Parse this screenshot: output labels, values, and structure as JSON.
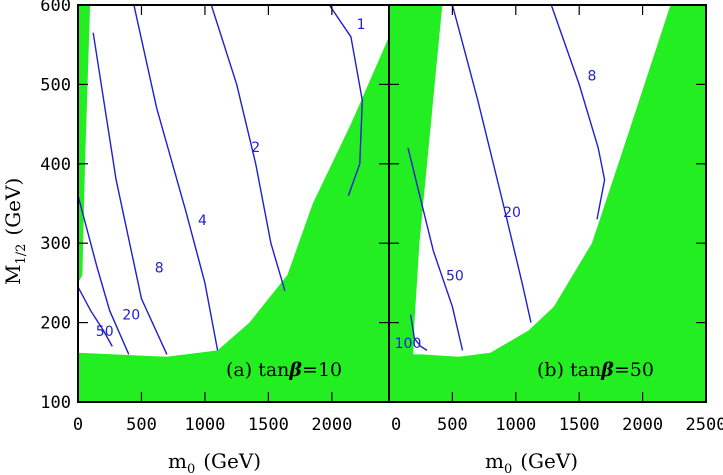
{
  "colors": {
    "excluded": "#22ee22",
    "contour": "#1f1fcf",
    "frame": "#000000"
  },
  "chart_data": [
    {
      "type": "contour",
      "panel": "a",
      "caption_prefix": "(a) tan",
      "caption_symbol": "β",
      "caption_value": "=10",
      "xlabel_main": "m",
      "xlabel_sub": "0",
      "xlabel_unit": "(GeV)",
      "ylabel_main": "M",
      "ylabel_sub": "1/2",
      "ylabel_unit": "(GeV)",
      "xlim": [
        0,
        2450
      ],
      "ylim": [
        100,
        600
      ],
      "xticks": [
        0,
        500,
        1000,
        1500,
        2000
      ],
      "xtick_labels": [
        "0",
        "500",
        "1000",
        "1500",
        "2000"
      ],
      "yticks": [
        100,
        200,
        300,
        400,
        500,
        600
      ],
      "ytick_labels": [
        "100",
        "200",
        "300",
        "400",
        "500",
        "600"
      ],
      "excluded_regions": [
        {
          "name": "left-strip",
          "points": [
            [
              0,
              360
            ],
            [
              0,
              600
            ],
            [
              95,
              600
            ],
            [
              55,
              400
            ],
            [
              35,
              260
            ],
            [
              0,
              250
            ]
          ]
        },
        {
          "name": "bottom-band",
          "points": [
            [
              0,
              100
            ],
            [
              2450,
              100
            ],
            [
              2450,
              560
            ],
            [
              2150,
              450
            ],
            [
              1850,
              350
            ],
            [
              1650,
              260
            ],
            [
              1350,
              200
            ],
            [
              1100,
              165
            ],
            [
              700,
              157
            ],
            [
              0,
              162
            ]
          ]
        }
      ],
      "contours": [
        {
          "label": "50",
          "points": [
            [
              0,
              245
            ],
            [
              100,
              215
            ],
            [
              200,
              190
            ],
            [
              270,
              170
            ]
          ],
          "label_at": [
            210,
            188
          ]
        },
        {
          "label": "20",
          "points": [
            [
              0,
              360
            ],
            [
              150,
              270
            ],
            [
              250,
              215
            ],
            [
              400,
              160
            ]
          ],
          "label_at": [
            420,
            209
          ]
        },
        {
          "label": "8",
          "points": [
            [
              120,
              565
            ],
            [
              300,
              380
            ],
            [
              500,
              230
            ],
            [
              700,
              160
            ]
          ],
          "label_at": [
            640,
            268
          ]
        },
        {
          "label": "4",
          "points": [
            [
              440,
              600
            ],
            [
              620,
              470
            ],
            [
              850,
              340
            ],
            [
              1000,
              250
            ],
            [
              1100,
              165
            ]
          ],
          "label_at": [
            980,
            328
          ]
        },
        {
          "label": "2",
          "points": [
            [
              1050,
              600
            ],
            [
              1250,
              500
            ],
            [
              1400,
              400
            ],
            [
              1520,
              300
            ],
            [
              1630,
              240
            ]
          ],
          "label_at": [
            1400,
            420
          ]
        },
        {
          "label": "1",
          "points": [
            [
              1980,
              600
            ],
            [
              2150,
              560
            ],
            [
              2240,
              480
            ],
            [
              2220,
              400
            ],
            [
              2130,
              360
            ]
          ],
          "label_at": [
            2230,
            575
          ]
        }
      ]
    },
    {
      "type": "contour",
      "panel": "b",
      "caption_prefix": "(b) tan",
      "caption_symbol": "β",
      "caption_value": "=50",
      "xlabel_main": "m",
      "xlabel_sub": "0",
      "xlabel_unit": "(GeV)",
      "xlim": [
        0,
        2500
      ],
      "ylim": [
        100,
        600
      ],
      "xticks": [
        0,
        500,
        1000,
        1500,
        2000,
        2500
      ],
      "xtick_labels": [
        "0",
        "500",
        "1000",
        "1500",
        "2000",
        "2500"
      ],
      "yticks": [
        100,
        200,
        300,
        400,
        500,
        600
      ],
      "excluded_regions": [
        {
          "name": "left-wedge",
          "points": [
            [
              0,
              100
            ],
            [
              0,
              600
            ],
            [
              420,
              600
            ],
            [
              240,
              300
            ],
            [
              200,
              200
            ],
            [
              190,
              150
            ],
            [
              0,
              150
            ]
          ]
        },
        {
          "name": "bottom-band",
          "points": [
            [
              0,
              100
            ],
            [
              2500,
              100
            ],
            [
              2500,
              600
            ],
            [
              2220,
              600
            ],
            [
              1850,
              420
            ],
            [
              1600,
              300
            ],
            [
              1300,
              220
            ],
            [
              1100,
              190
            ],
            [
              800,
              162
            ],
            [
              550,
              157
            ],
            [
              260,
              160
            ],
            [
              0,
              160
            ]
          ]
        }
      ],
      "contours": [
        {
          "label": "100",
          "points": [
            [
              170,
              210
            ],
            [
              200,
              180
            ],
            [
              250,
              170
            ],
            [
              300,
              165
            ]
          ],
          "label_at": [
            150,
            173
          ]
        },
        {
          "label": "50",
          "points": [
            [
              150,
              420
            ],
            [
              350,
              290
            ],
            [
              500,
              220
            ],
            [
              580,
              165
            ]
          ],
          "label_at": [
            520,
            258
          ]
        },
        {
          "label": "20",
          "points": [
            [
              500,
              600
            ],
            [
              700,
              480
            ],
            [
              900,
              350
            ],
            [
              1050,
              250
            ],
            [
              1120,
              200
            ]
          ],
          "label_at": [
            970,
            338
          ]
        },
        {
          "label": "8",
          "points": [
            [
              1280,
              600
            ],
            [
              1500,
              500
            ],
            [
              1650,
              420
            ],
            [
              1700,
              380
            ],
            [
              1640,
              330
            ]
          ],
          "label_at": [
            1600,
            510
          ]
        }
      ]
    }
  ]
}
